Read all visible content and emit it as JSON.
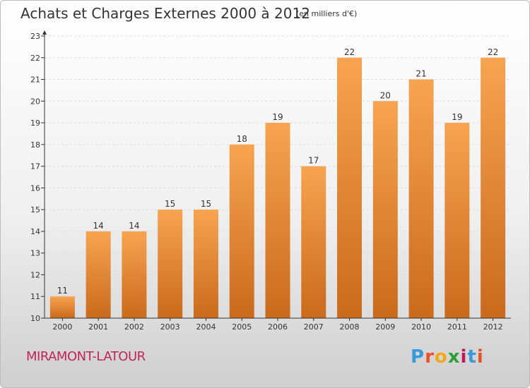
{
  "header": {
    "title": "Achats et Charges Externes 2000 à 2012",
    "subtitle": "(en milliers d'€)"
  },
  "footer": {
    "commune": "MIRAMONT-LATOUR",
    "logo_letters": [
      "P",
      "r",
      "o",
      "x",
      "i",
      "t",
      "i"
    ],
    "logo_colors": [
      "#3a9ad9",
      "#e8512a",
      "#f2a71b",
      "#2e9e3a",
      "#c2185b",
      "#3a9ad9",
      "#e8512a"
    ]
  },
  "colors": {
    "bar_top": "#f7a451",
    "bar_bottom": "#c96a1c",
    "grid": "#dcdcdc",
    "axis": "#333333"
  },
  "chart_data": {
    "type": "bar",
    "title": "Achats et Charges Externes 2000 à 2012",
    "subtitle": "(en milliers d'€)",
    "xlabel": "",
    "ylabel": "",
    "categories": [
      "2000",
      "2001",
      "2002",
      "2003",
      "2004",
      "2005",
      "2006",
      "2007",
      "2008",
      "2009",
      "2010",
      "2011",
      "2012"
    ],
    "values": [
      11,
      14,
      14,
      15,
      15,
      18,
      19,
      17,
      22,
      20,
      21,
      19,
      22
    ],
    "ylim": [
      10,
      23
    ],
    "yticks": [
      10,
      11,
      12,
      13,
      14,
      15,
      16,
      17,
      18,
      19,
      20,
      21,
      22,
      23
    ],
    "grid": true,
    "legend": "none"
  }
}
